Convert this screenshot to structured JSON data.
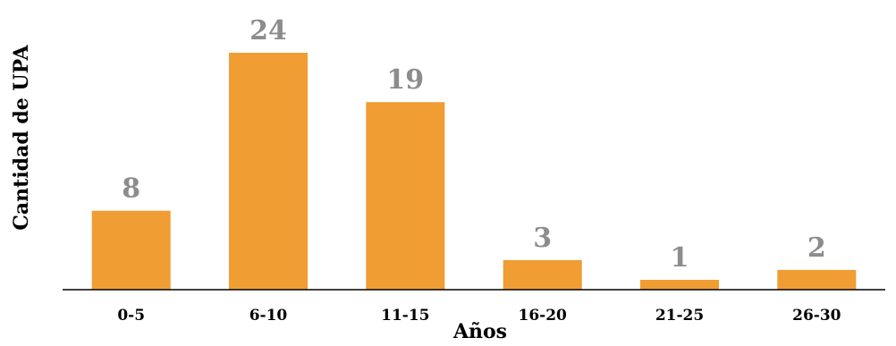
{
  "chart_data": {
    "type": "bar",
    "categories": [
      "0-5",
      "6-10",
      "11-15",
      "16-20",
      "21-25",
      "26-30"
    ],
    "values": [
      8,
      24,
      19,
      3,
      1,
      2
    ],
    "xlabel": "Años",
    "ylabel": "Cantidad de UPA",
    "ylim": [
      0,
      24
    ],
    "grid": false,
    "legend": "none",
    "colors": {
      "bar": "#F09D33",
      "data_label": "#8C8C8C",
      "text": "#000000",
      "axis": "#000000"
    }
  }
}
